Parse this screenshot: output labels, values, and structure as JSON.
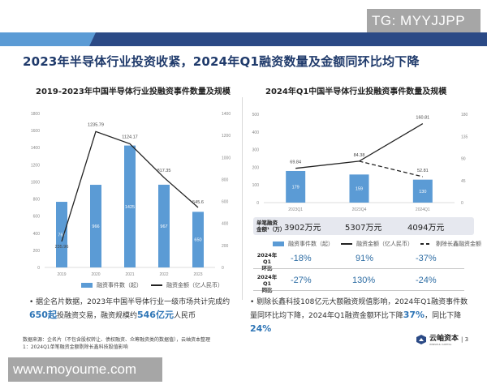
{
  "watermark_top": "TG: MYYJJPP",
  "watermark_bottom": "www.moyoume.com",
  "colors": {
    "banner_light": "#5b9bd5",
    "banner_dark": "#2b4a86",
    "bar": "#5b9bd5",
    "line": "#222222",
    "title": "#1f3a6b",
    "highlight": "#2e75b6",
    "table_bg": "#e6e8ef"
  },
  "header": {
    "title": "2023年半导体行业投资收紧，2024年Q1融资数量及金额同环比均下降"
  },
  "left_chart": {
    "title": "2019-2023年中国半导体行业投融资事件数量及规模",
    "legend": {
      "bar": "融资事件数（起）",
      "line": "融资金额（亿人民币）"
    }
  },
  "right_chart": {
    "title": "2024年Q1中国半导体行业投融资事件数量及规模",
    "legend": {
      "bar": "融资事件数（起）",
      "line": "融资金额（亿人民币）",
      "dashed": "剔除长鑫融资金额"
    },
    "amount_label_1": "单笔融资",
    "amount_label_2": "金额¹（万）",
    "amounts": [
      "3902万元",
      "5307万元",
      "4094万元"
    ],
    "qoq_label_1": "2024年Q1",
    "qoq_label_2": "环比",
    "qoq": [
      "-18%",
      "91%",
      "-37%"
    ],
    "yoy_label_1": "2024年Q1",
    "yoy_label_2": "同比",
    "yoy": [
      "-27%",
      "130%",
      "-24%"
    ]
  },
  "bullets": {
    "left_pre": "据企名片数据，2023年中国半导体行业一级市场共计完成约",
    "left_hl1": "650起",
    "left_mid": "投融资交易，融资规模约",
    "left_hl2": "546亿元",
    "left_post": "人民币",
    "right_pre": "剔除长鑫科技108亿元大额融资规值影响，2024年Q1融资事件数量同环比均下降，2024年Q1融资金额环比下降",
    "right_hl1": "37%",
    "right_mid": "，同比下降",
    "right_hl2": "24%"
  },
  "footer": {
    "source": "数据来源：企名片（不包含股权转让、债权融资、众筹融资类的数据值），云岫资本整理",
    "note": "1：2024Q1单笔融资金额剔除长鑫科技股值影响",
    "logo_text": "云岫资本",
    "logo_sub": "WINSOUL CAPITAL",
    "page": "3"
  },
  "chart_data": [
    {
      "type": "bar",
      "title": "2019-2023年中国半导体行业投融资事件数量及规模",
      "categories": [
        "2019",
        "2020",
        "2021",
        "2022",
        "2023"
      ],
      "series": [
        {
          "name": "融资事件数（起）",
          "type": "bar",
          "axis": "left",
          "values": [
            767,
            966,
            1425,
            967,
            650
          ]
        },
        {
          "name": "融资金额（亿人民币）",
          "type": "line",
          "axis": "right",
          "values": [
            235.96,
            1235.79,
            1124.17,
            817.35,
            545.6
          ]
        }
      ],
      "y_left": {
        "range": [
          0,
          1800
        ],
        "ticks": [
          0,
          200,
          400,
          600,
          800,
          1000,
          1200,
          1400,
          1600,
          1800
        ]
      },
      "y_right": {
        "range": [
          0,
          1400
        ],
        "ticks": [
          0,
          200,
          400,
          600,
          800,
          1000,
          1200,
          1400
        ]
      },
      "legend_position": "bottom",
      "grid": false
    },
    {
      "type": "bar",
      "title": "2024年Q1中国半导体行业投融资事件数量及规模",
      "categories": [
        "2023Q1",
        "2023Q4",
        "2024Q1"
      ],
      "series": [
        {
          "name": "融资事件数（起）",
          "type": "bar",
          "axis": "left",
          "values": [
            179,
            159,
            130
          ]
        },
        {
          "name": "融资金额（亿人民币）",
          "type": "line",
          "axis": "right",
          "values": [
            69.84,
            84.38,
            160.81
          ]
        },
        {
          "name": "剔除长鑫融资金额",
          "type": "line-dashed",
          "axis": "right",
          "values": [
            null,
            84.38,
            52.81
          ]
        }
      ],
      "y_left": {
        "range": [
          0,
          500
        ],
        "ticks": [
          0,
          100,
          200,
          300,
          400,
          500
        ]
      },
      "y_right": {
        "range": [
          0,
          180
        ],
        "ticks": [
          0,
          45,
          90,
          135,
          180
        ]
      },
      "legend_position": "bottom",
      "grid": false
    }
  ]
}
